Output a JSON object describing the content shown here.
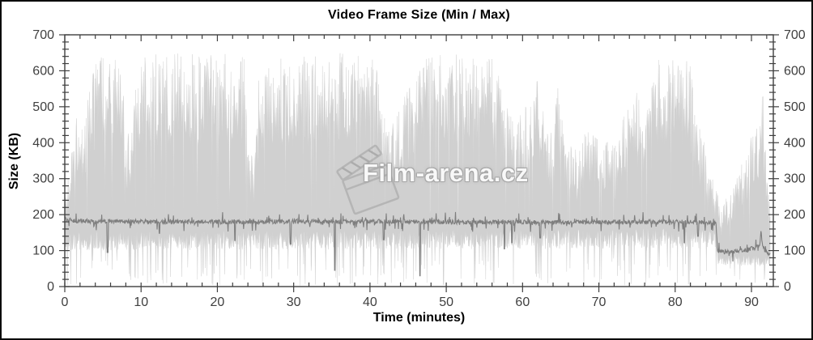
{
  "watermark": {
    "text": "Film-arena.cz",
    "icon": "clapperboard-icon"
  },
  "chart_data": {
    "type": "area",
    "subtype": "min-max-envelope-with-average-line",
    "title": "Video Frame Size (Min / Max)",
    "xlabel": "Time (minutes)",
    "ylabel": "Size (KB)",
    "xlim": [
      0,
      92.9
    ],
    "ylim": [
      0,
      700
    ],
    "x_major_ticks": [
      0,
      10,
      20,
      30,
      40,
      50,
      60,
      70,
      80,
      90
    ],
    "x_minor_step": 2,
    "y_major_ticks": [
      0,
      100,
      200,
      300,
      400,
      500,
      600,
      700
    ],
    "y_minor_step": 20,
    "right_axis_mirrors_left": true,
    "grid": false,
    "legend": "none",
    "colors": {
      "envelope_fill": "#d0d0d0",
      "average_line": "#7e7e7e",
      "axis": "#3f3f3f",
      "tick_label": "#3f3f3f",
      "title": "#000000",
      "background": "#ffffff"
    },
    "series": [
      {
        "name": "max-frame-size-envelope",
        "role": "area-top",
        "units": "KB",
        "trend_points": [
          [
            0,
            280
          ],
          [
            0.7,
            320
          ],
          [
            1.2,
            500
          ],
          [
            2,
            460
          ],
          [
            3,
            530
          ],
          [
            4,
            630
          ],
          [
            5,
            650
          ],
          [
            7.5,
            620
          ],
          [
            8.2,
            430
          ],
          [
            8.8,
            450
          ],
          [
            9.5,
            610
          ],
          [
            10.5,
            640
          ],
          [
            12,
            650
          ],
          [
            21,
            650
          ],
          [
            23.5,
            640
          ],
          [
            24.2,
            360
          ],
          [
            24.8,
            380
          ],
          [
            25.5,
            620
          ],
          [
            27,
            630
          ],
          [
            30,
            640
          ],
          [
            35,
            650
          ],
          [
            40,
            645
          ],
          [
            41.2,
            600
          ],
          [
            41.8,
            500
          ],
          [
            43,
            455
          ],
          [
            44,
            505
          ],
          [
            45,
            555
          ],
          [
            46,
            600
          ],
          [
            47,
            625
          ],
          [
            48,
            645
          ],
          [
            52,
            650
          ],
          [
            56,
            635
          ],
          [
            57,
            600
          ],
          [
            58,
            505
          ],
          [
            59,
            455
          ],
          [
            60,
            485
          ],
          [
            61,
            525
          ],
          [
            62,
            600
          ],
          [
            63,
            455
          ],
          [
            64,
            430
          ],
          [
            64.6,
            560
          ],
          [
            65,
            480
          ],
          [
            66,
            410
          ],
          [
            67,
            385
          ],
          [
            68,
            425
          ],
          [
            69,
            455
          ],
          [
            70,
            405
          ],
          [
            71,
            435
          ],
          [
            72,
            390
          ],
          [
            73,
            465
          ],
          [
            74,
            505
          ],
          [
            75,
            555
          ],
          [
            76,
            490
          ],
          [
            77,
            605
          ],
          [
            78,
            645
          ],
          [
            80,
            650
          ],
          [
            82,
            620
          ],
          [
            83,
            455
          ],
          [
            84,
            405
          ],
          [
            85,
            310
          ],
          [
            85.6,
            255
          ],
          [
            86,
            225
          ],
          [
            87,
            255
          ],
          [
            88,
            305
          ],
          [
            89,
            355
          ],
          [
            90,
            425
          ],
          [
            91,
            455
          ],
          [
            91.5,
            555
          ],
          [
            92,
            310
          ],
          [
            92.5,
            210
          ]
        ]
      },
      {
        "name": "min-frame-size-envelope",
        "role": "area-bottom",
        "units": "KB",
        "trend_points": [
          [
            0,
            118
          ],
          [
            40,
            122
          ],
          [
            85.35,
            125
          ],
          [
            85.6,
            70
          ],
          [
            90,
            68
          ],
          [
            92.5,
            64
          ]
        ]
      },
      {
        "name": "average-frame-size",
        "role": "line",
        "units": "KB",
        "trend_points": [
          [
            0,
            192
          ],
          [
            0.3,
            188
          ],
          [
            1,
            183
          ],
          [
            5,
            181
          ],
          [
            20,
            180
          ],
          [
            40,
            181
          ],
          [
            60,
            179
          ],
          [
            80,
            180
          ],
          [
            84,
            179
          ],
          [
            85.35,
            178
          ],
          [
            85.55,
            100
          ],
          [
            86.5,
            95
          ],
          [
            87.5,
            97
          ],
          [
            88.5,
            100
          ],
          [
            89.5,
            103
          ],
          [
            90.5,
            108
          ],
          [
            91.1,
            115
          ],
          [
            91.25,
            160
          ],
          [
            91.45,
            112
          ],
          [
            91.9,
            95
          ],
          [
            92.2,
            92
          ],
          [
            92.5,
            88
          ]
        ],
        "dip_events": [
          [
            5.6,
            95
          ],
          [
            12.4,
            148
          ],
          [
            22.3,
            128
          ],
          [
            29.6,
            118
          ],
          [
            35.4,
            45
          ],
          [
            41.8,
            130
          ],
          [
            46.55,
            30
          ],
          [
            57.6,
            105
          ],
          [
            58.6,
            122
          ],
          [
            62.3,
            135
          ],
          [
            81.2,
            122
          ],
          [
            83.0,
            140
          ]
        ]
      }
    ],
    "noise": {
      "seed": 1337,
      "sample_step_minutes": 0.055,
      "top_solid_fraction": 0.6,
      "top_gap_chance": 0.055,
      "bottom_spike_chance": 0.1,
      "bottom_deep_spike_chance": 0.018,
      "line_jitter_kb": 12,
      "line_excursion_chance": 0.1,
      "line_excursion_kb": 55,
      "data_end_minute": 92.5
    }
  }
}
